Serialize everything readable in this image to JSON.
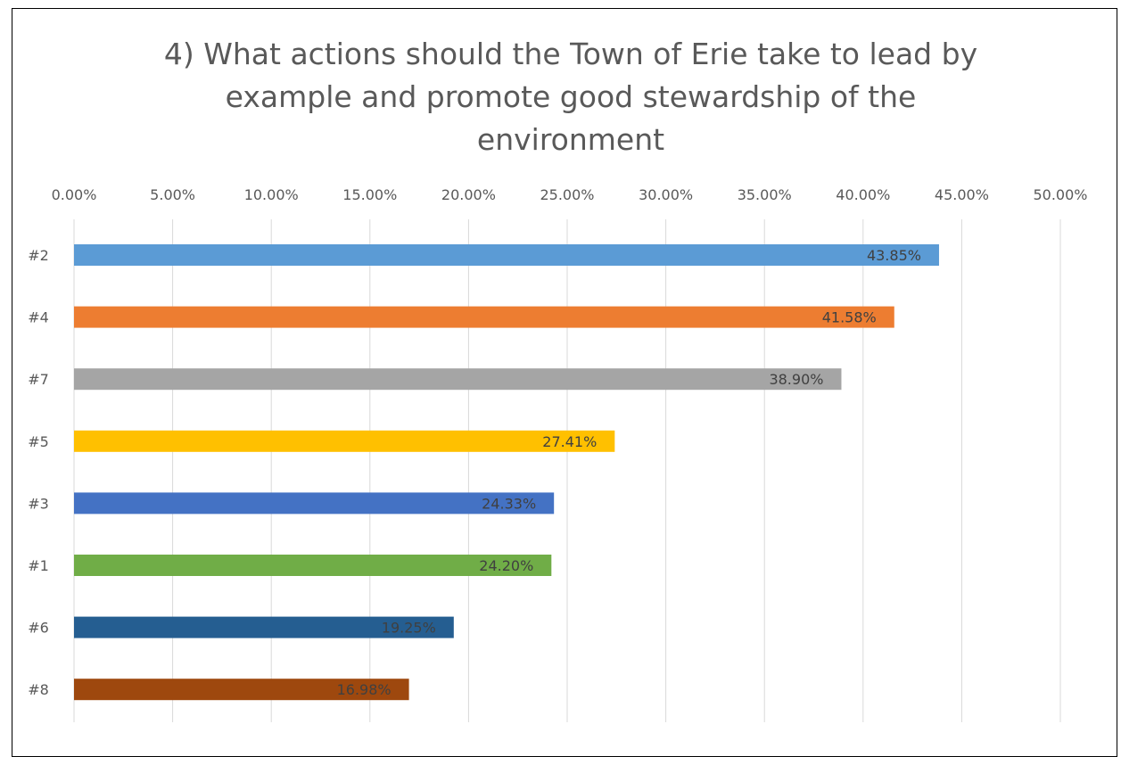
{
  "chart_data": {
    "type": "bar",
    "orientation": "horizontal",
    "title": "4) What actions should the Town of Erie take to lead by example and promote good stewardship of the environment",
    "xlabel": "",
    "ylabel": "",
    "xlim": [
      0,
      50
    ],
    "x_tick_values": [
      0,
      5,
      10,
      15,
      20,
      25,
      30,
      35,
      40,
      45,
      50
    ],
    "x_tick_labels": [
      "0.00%",
      "5.00%",
      "10.00%",
      "15.00%",
      "20.00%",
      "25.00%",
      "30.00%",
      "35.00%",
      "40.00%",
      "45.00%",
      "50.00%"
    ],
    "axis_position": "top",
    "grid": true,
    "legend": "none",
    "categories": [
      "#2",
      "#4",
      "#7",
      "#5",
      "#3",
      "#1",
      "#6",
      "#8"
    ],
    "values": [
      43.85,
      41.58,
      38.9,
      27.41,
      24.33,
      24.2,
      19.25,
      16.98
    ],
    "data_labels": [
      "43.85%",
      "41.58%",
      "38.90%",
      "27.41%",
      "24.33%",
      "24.20%",
      "19.25%",
      "16.98%"
    ],
    "colors": [
      "#5B9BD5",
      "#ED7D31",
      "#A5A5A5",
      "#FFC000",
      "#4472C4",
      "#70AD47",
      "#255E91",
      "#9E480E"
    ]
  }
}
